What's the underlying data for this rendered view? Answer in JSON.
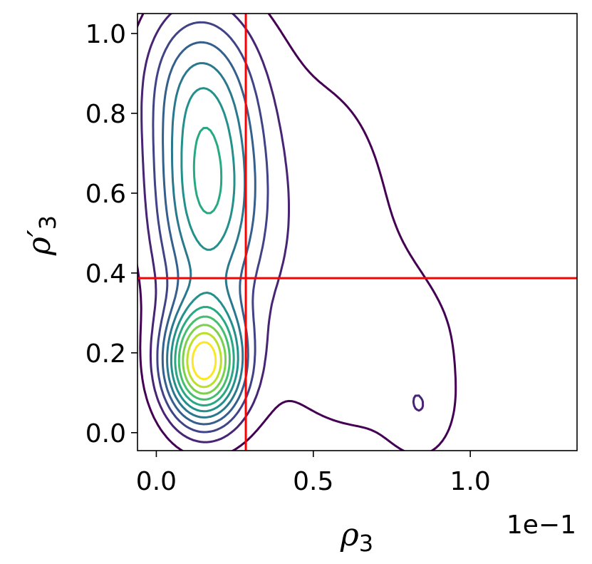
{
  "chart_data": {
    "type": "contour",
    "title": "",
    "xlabel": "ρ",
    "xlabel_sub": "3",
    "ylabel": "ρ′",
    "ylabel_sub": "3",
    "x_offset_label": "1e−1",
    "xlim": [
      -0.06,
      1.34
    ],
    "ylim": [
      -0.045,
      1.05
    ],
    "x_ticks": [
      0.0,
      0.5,
      1.0
    ],
    "x_tick_labels": [
      "0.0",
      "0.5",
      "1.0"
    ],
    "y_ticks": [
      0.0,
      0.2,
      0.4,
      0.6,
      0.8,
      1.0
    ],
    "y_tick_labels": [
      "0.0",
      "0.2",
      "0.4",
      "0.6",
      "0.8",
      "1.0"
    ],
    "grid": false,
    "colormap": "viridis",
    "levels": 11,
    "reference_lines": {
      "color": "#ff0000",
      "vertical_x": 0.285,
      "horizontal_y": 0.387
    },
    "density_components": [
      {
        "mx": 0.15,
        "my": 0.17,
        "sx": 0.085,
        "sy": 0.1,
        "w": 1.0
      },
      {
        "mx": 0.16,
        "my": 0.6,
        "sx": 0.12,
        "sy": 0.22,
        "w": 0.6
      },
      {
        "mx": 0.12,
        "my": 0.9,
        "sx": 0.13,
        "sy": 0.15,
        "w": 0.25
      },
      {
        "mx": 0.5,
        "my": 0.5,
        "sx": 0.26,
        "sy": 0.4,
        "w": 0.14
      },
      {
        "mx": 0.78,
        "my": 0.2,
        "sx": 0.18,
        "sy": 0.15,
        "w": 0.1
      },
      {
        "mx": 0.85,
        "my": 0.04,
        "sx": 0.07,
        "sy": 0.08,
        "w": 0.1
      }
    ]
  }
}
